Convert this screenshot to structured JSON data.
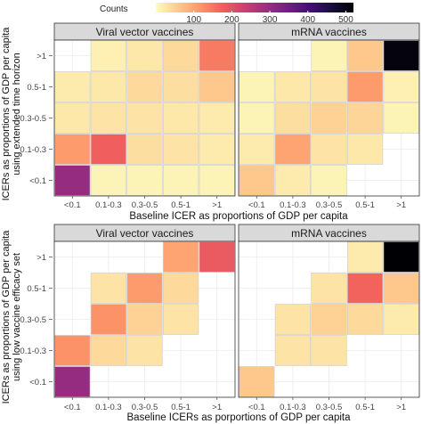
{
  "legend": {
    "title": "Counts",
    "ticks": [
      100,
      200,
      300,
      400,
      500
    ],
    "min": 0,
    "max": 520,
    "palette": [
      "#fcfdbf",
      "#feca8d",
      "#fd9668",
      "#f1605d",
      "#cd4071",
      "#9e2f7f",
      "#721f81",
      "#440f76",
      "#180f3d",
      "#000004"
    ]
  },
  "chart_data": [
    {
      "type": "heatmap",
      "ylabel": "ICERs as proportions of GDP per capita using extended time horizon",
      "xlabel": "Baseline ICER as proportions of GDP per capita",
      "x_categories": [
        "<0.1",
        "0.1-0.3",
        "0.3-0.5",
        "0.5-1",
        ">1"
      ],
      "y_categories": [
        "<0.1",
        "0.1-0.3",
        "0.3-0.5",
        "0.5-1",
        ">1"
      ],
      "panels": [
        {
          "facet": "Viral vector vaccines",
          "cells": [
            {
              "x": "<0.1",
              "y": "<0.1",
              "count": 300
            },
            {
              "x": "<0.1",
              "y": "0.1-0.3",
              "count": 110
            },
            {
              "x": "<0.1",
              "y": "0.3-0.5",
              "count": 25
            },
            {
              "x": "<0.1",
              "y": "0.5-1",
              "count": 20
            },
            {
              "x": "0.1-0.3",
              "y": "<0.1",
              "count": 10
            },
            {
              "x": "0.1-0.3",
              "y": "0.1-0.3",
              "count": 175
            },
            {
              "x": "0.1-0.3",
              "y": "0.3-0.5",
              "count": 30
            },
            {
              "x": "0.1-0.3",
              "y": "0.5-1",
              "count": 25
            },
            {
              "x": "0.1-0.3",
              "y": ">1",
              "count": 15
            },
            {
              "x": "0.3-0.5",
              "y": "<0.1",
              "count": 10
            },
            {
              "x": "0.3-0.5",
              "y": "0.1-0.3",
              "count": 35
            },
            {
              "x": "0.3-0.5",
              "y": "0.3-0.5",
              "count": 30
            },
            {
              "x": "0.3-0.5",
              "y": "0.5-1",
              "count": 40
            },
            {
              "x": "0.3-0.5",
              "y": ">1",
              "count": 25
            },
            {
              "x": "0.5-1",
              "y": "<0.1",
              "count": 10
            },
            {
              "x": "0.5-1",
              "y": "0.1-0.3",
              "count": 30
            },
            {
              "x": "0.5-1",
              "y": "0.3-0.5",
              "count": 25
            },
            {
              "x": "0.5-1",
              "y": "0.5-1",
              "count": 35
            },
            {
              "x": "0.5-1",
              "y": ">1",
              "count": 40
            },
            {
              "x": ">1",
              "y": "<0.1",
              "count": 10
            },
            {
              "x": ">1",
              "y": "0.1-0.3",
              "count": 20
            },
            {
              "x": ">1",
              "y": "0.3-0.5",
              "count": 20
            },
            {
              "x": ">1",
              "y": "0.5-1",
              "count": 60
            },
            {
              "x": ">1",
              "y": ">1",
              "count": 145
            }
          ]
        },
        {
          "facet": "mRNA vaccines",
          "cells": [
            {
              "x": "<0.1",
              "y": "<0.1",
              "count": 60
            },
            {
              "x": "<0.1",
              "y": "0.1-0.3",
              "count": 20
            },
            {
              "x": "<0.1",
              "y": "0.3-0.5",
              "count": 10
            },
            {
              "x": "<0.1",
              "y": "0.5-1",
              "count": 10
            },
            {
              "x": "0.1-0.3",
              "y": "<0.1",
              "count": 20
            },
            {
              "x": "0.1-0.3",
              "y": "0.1-0.3",
              "count": 100
            },
            {
              "x": "0.1-0.3",
              "y": "0.3-0.5",
              "count": 35
            },
            {
              "x": "0.1-0.3",
              "y": "0.5-1",
              "count": 25
            },
            {
              "x": "0.3-0.5",
              "y": "<0.1",
              "count": 10
            },
            {
              "x": "0.3-0.5",
              "y": "0.1-0.3",
              "count": 30
            },
            {
              "x": "0.3-0.5",
              "y": "0.3-0.5",
              "count": 50
            },
            {
              "x": "0.3-0.5",
              "y": "0.5-1",
              "count": 30
            },
            {
              "x": "0.3-0.5",
              "y": ">1",
              "count": 10
            },
            {
              "x": "0.5-1",
              "y": "0.1-0.3",
              "count": 25
            },
            {
              "x": "0.5-1",
              "y": "0.3-0.5",
              "count": 45
            },
            {
              "x": "0.5-1",
              "y": "0.5-1",
              "count": 110
            },
            {
              "x": "0.5-1",
              "y": ">1",
              "count": 60
            },
            {
              "x": ">1",
              "y": "0.3-0.5",
              "count": 10
            },
            {
              "x": ">1",
              "y": "0.5-1",
              "count": 15
            },
            {
              "x": ">1",
              "y": ">1",
              "count": 510
            }
          ]
        }
      ]
    },
    {
      "type": "heatmap",
      "ylabel": "ICERs as proportions of GDP per capita using low vaccine efficacy set",
      "xlabel": "Baseline ICERs as porportions of GDP per capita",
      "x_categories": [
        "<0.1",
        "0.1-0.3",
        "0.3-0.5",
        "0.5-1",
        ">1"
      ],
      "y_categories": [
        "<0.1",
        "0.1-0.3",
        "0.3-0.5",
        "0.5-1",
        ">1"
      ],
      "panels": [
        {
          "facet": "Viral vector vaccines",
          "cells": [
            {
              "x": "<0.1",
              "y": "<0.1",
              "count": 300
            },
            {
              "x": "<0.1",
              "y": "0.1-0.3",
              "count": 120
            },
            {
              "x": "0.1-0.3",
              "y": "0.1-0.3",
              "count": 40
            },
            {
              "x": "0.1-0.3",
              "y": "0.3-0.5",
              "count": 120
            },
            {
              "x": "0.1-0.3",
              "y": "0.5-1",
              "count": 30
            },
            {
              "x": "0.3-0.5",
              "y": "0.1-0.3",
              "count": 30
            },
            {
              "x": "0.3-0.5",
              "y": "0.3-0.5",
              "count": 50
            },
            {
              "x": "0.3-0.5",
              "y": "0.5-1",
              "count": 110
            },
            {
              "x": "0.5-1",
              "y": "0.3-0.5",
              "count": 30
            },
            {
              "x": "0.5-1",
              "y": "0.5-1",
              "count": 40
            },
            {
              "x": "0.5-1",
              "y": ">1",
              "count": 100
            },
            {
              "x": ">1",
              "y": ">1",
              "count": 185
            }
          ]
        },
        {
          "facet": "mRNA vaccines",
          "cells": [
            {
              "x": "<0.1",
              "y": "<0.1",
              "count": 60
            },
            {
              "x": "0.1-0.3",
              "y": "0.1-0.3",
              "count": 30
            },
            {
              "x": "0.1-0.3",
              "y": "0.3-0.5",
              "count": 30
            },
            {
              "x": "0.3-0.5",
              "y": "0.1-0.3",
              "count": 30
            },
            {
              "x": "0.3-0.5",
              "y": "0.3-0.5",
              "count": 50
            },
            {
              "x": "0.3-0.5",
              "y": "0.5-1",
              "count": 30
            },
            {
              "x": "0.5-1",
              "y": "0.3-0.5",
              "count": 40
            },
            {
              "x": "0.5-1",
              "y": "0.5-1",
              "count": 170
            },
            {
              "x": "0.5-1",
              "y": ">1",
              "count": 20
            },
            {
              "x": ">1",
              "y": "0.3-0.5",
              "count": 20
            },
            {
              "x": ">1",
              "y": "0.5-1",
              "count": 60
            },
            {
              "x": ">1",
              "y": ">1",
              "count": 520
            }
          ]
        }
      ]
    }
  ]
}
